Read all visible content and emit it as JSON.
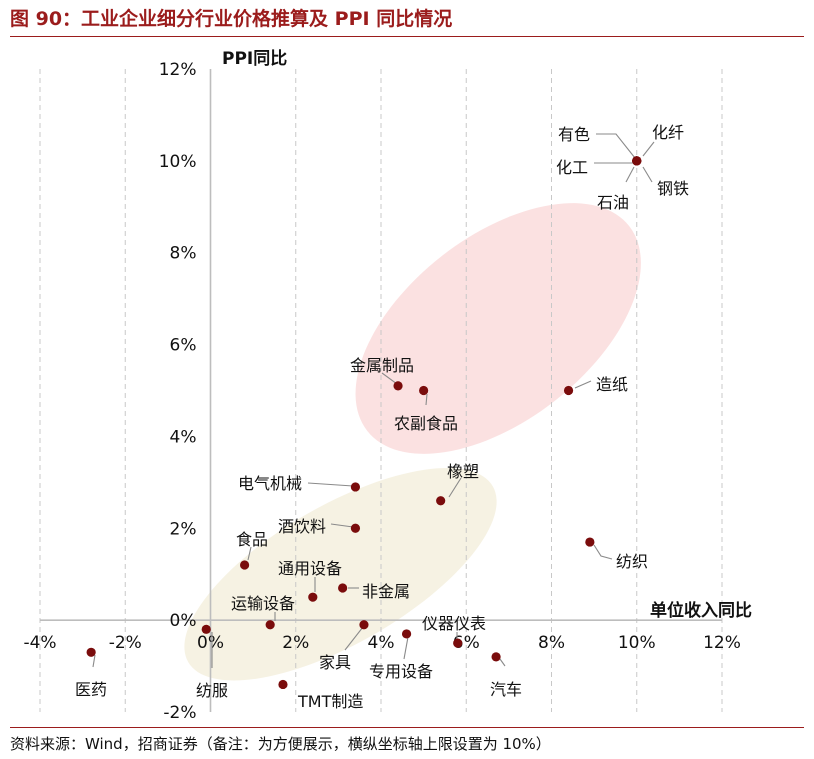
{
  "figure": {
    "title": "图 90：工业企业细分行业价格推算及 PPI 同比情况",
    "source": "资料来源：Wind，招商证券（备注：为方便展示，横纵坐标轴上限设置为 10%）"
  },
  "chart_data": {
    "type": "scatter",
    "title": "",
    "xlabel": "单位收入同比",
    "ylabel": "PPI同比",
    "xlim": [
      -4,
      12
    ],
    "ylim": [
      -2,
      12
    ],
    "x_ticks": [
      -4,
      -2,
      0,
      2,
      4,
      6,
      8,
      10,
      12
    ],
    "y_ticks": [
      -2,
      0,
      2,
      4,
      6,
      8,
      10,
      12
    ],
    "x_tick_labels": [
      "-4%",
      "-2%",
      "0%",
      "2%",
      "4%",
      "6%",
      "8%",
      "10%",
      "12%"
    ],
    "y_tick_labels": [
      "-2%",
      "0%",
      "2%",
      "4%",
      "6%",
      "8%",
      "10%",
      "12%"
    ],
    "grid": "vertical dashed",
    "point_color": "#7a0c0c",
    "clusters": [
      {
        "center": [
          6.75,
          6.35
        ],
        "rx": 7.8,
        "ry": 4.0,
        "angle": 38,
        "color": "#f7c9c9",
        "opacity": 0.55
      },
      {
        "center": [
          3.05,
          1.0
        ],
        "rx": 8.25,
        "ry": 3.0,
        "angle": 30,
        "color": "#efe7cc",
        "opacity": 0.55
      }
    ],
    "points": [
      {
        "name": "有色",
        "x": 10.0,
        "y": 10.0
      },
      {
        "name": "化纤",
        "x": 10.0,
        "y": 10.0
      },
      {
        "name": "化工",
        "x": 10.0,
        "y": 10.0
      },
      {
        "name": "钢铁",
        "x": 10.0,
        "y": 10.0
      },
      {
        "name": "石油",
        "x": 10.0,
        "y": 10.0
      },
      {
        "name": "金属制品",
        "x": 4.4,
        "y": 5.1
      },
      {
        "name": "农副食品",
        "x": 5.0,
        "y": 5.0
      },
      {
        "name": "造纸",
        "x": 8.4,
        "y": 5.0
      },
      {
        "name": "橡塑",
        "x": 5.4,
        "y": 2.6
      },
      {
        "name": "电气机械",
        "x": 3.4,
        "y": 2.9
      },
      {
        "name": "酒饮料",
        "x": 3.4,
        "y": 2.0
      },
      {
        "name": "纺织",
        "x": 8.9,
        "y": 1.7
      },
      {
        "name": "食品",
        "x": 0.8,
        "y": 1.2
      },
      {
        "name": "通用设备",
        "x": 2.4,
        "y": 0.5
      },
      {
        "name": "非金属",
        "x": 3.1,
        "y": 0.7
      },
      {
        "name": "运输设备",
        "x": 1.4,
        "y": -0.1
      },
      {
        "name": "家具",
        "x": 3.6,
        "y": -0.1
      },
      {
        "name": "仪器仪表",
        "x": 5.8,
        "y": -0.5
      },
      {
        "name": "专用设备",
        "x": 4.6,
        "y": -0.3
      },
      {
        "name": "汽车",
        "x": 6.7,
        "y": -0.8
      },
      {
        "name": "医药",
        "x": -2.8,
        "y": -0.7
      },
      {
        "name": "纺服",
        "x": -0.1,
        "y": -0.2
      },
      {
        "name": "TMT制造",
        "x": 1.7,
        "y": -1.4
      }
    ]
  }
}
